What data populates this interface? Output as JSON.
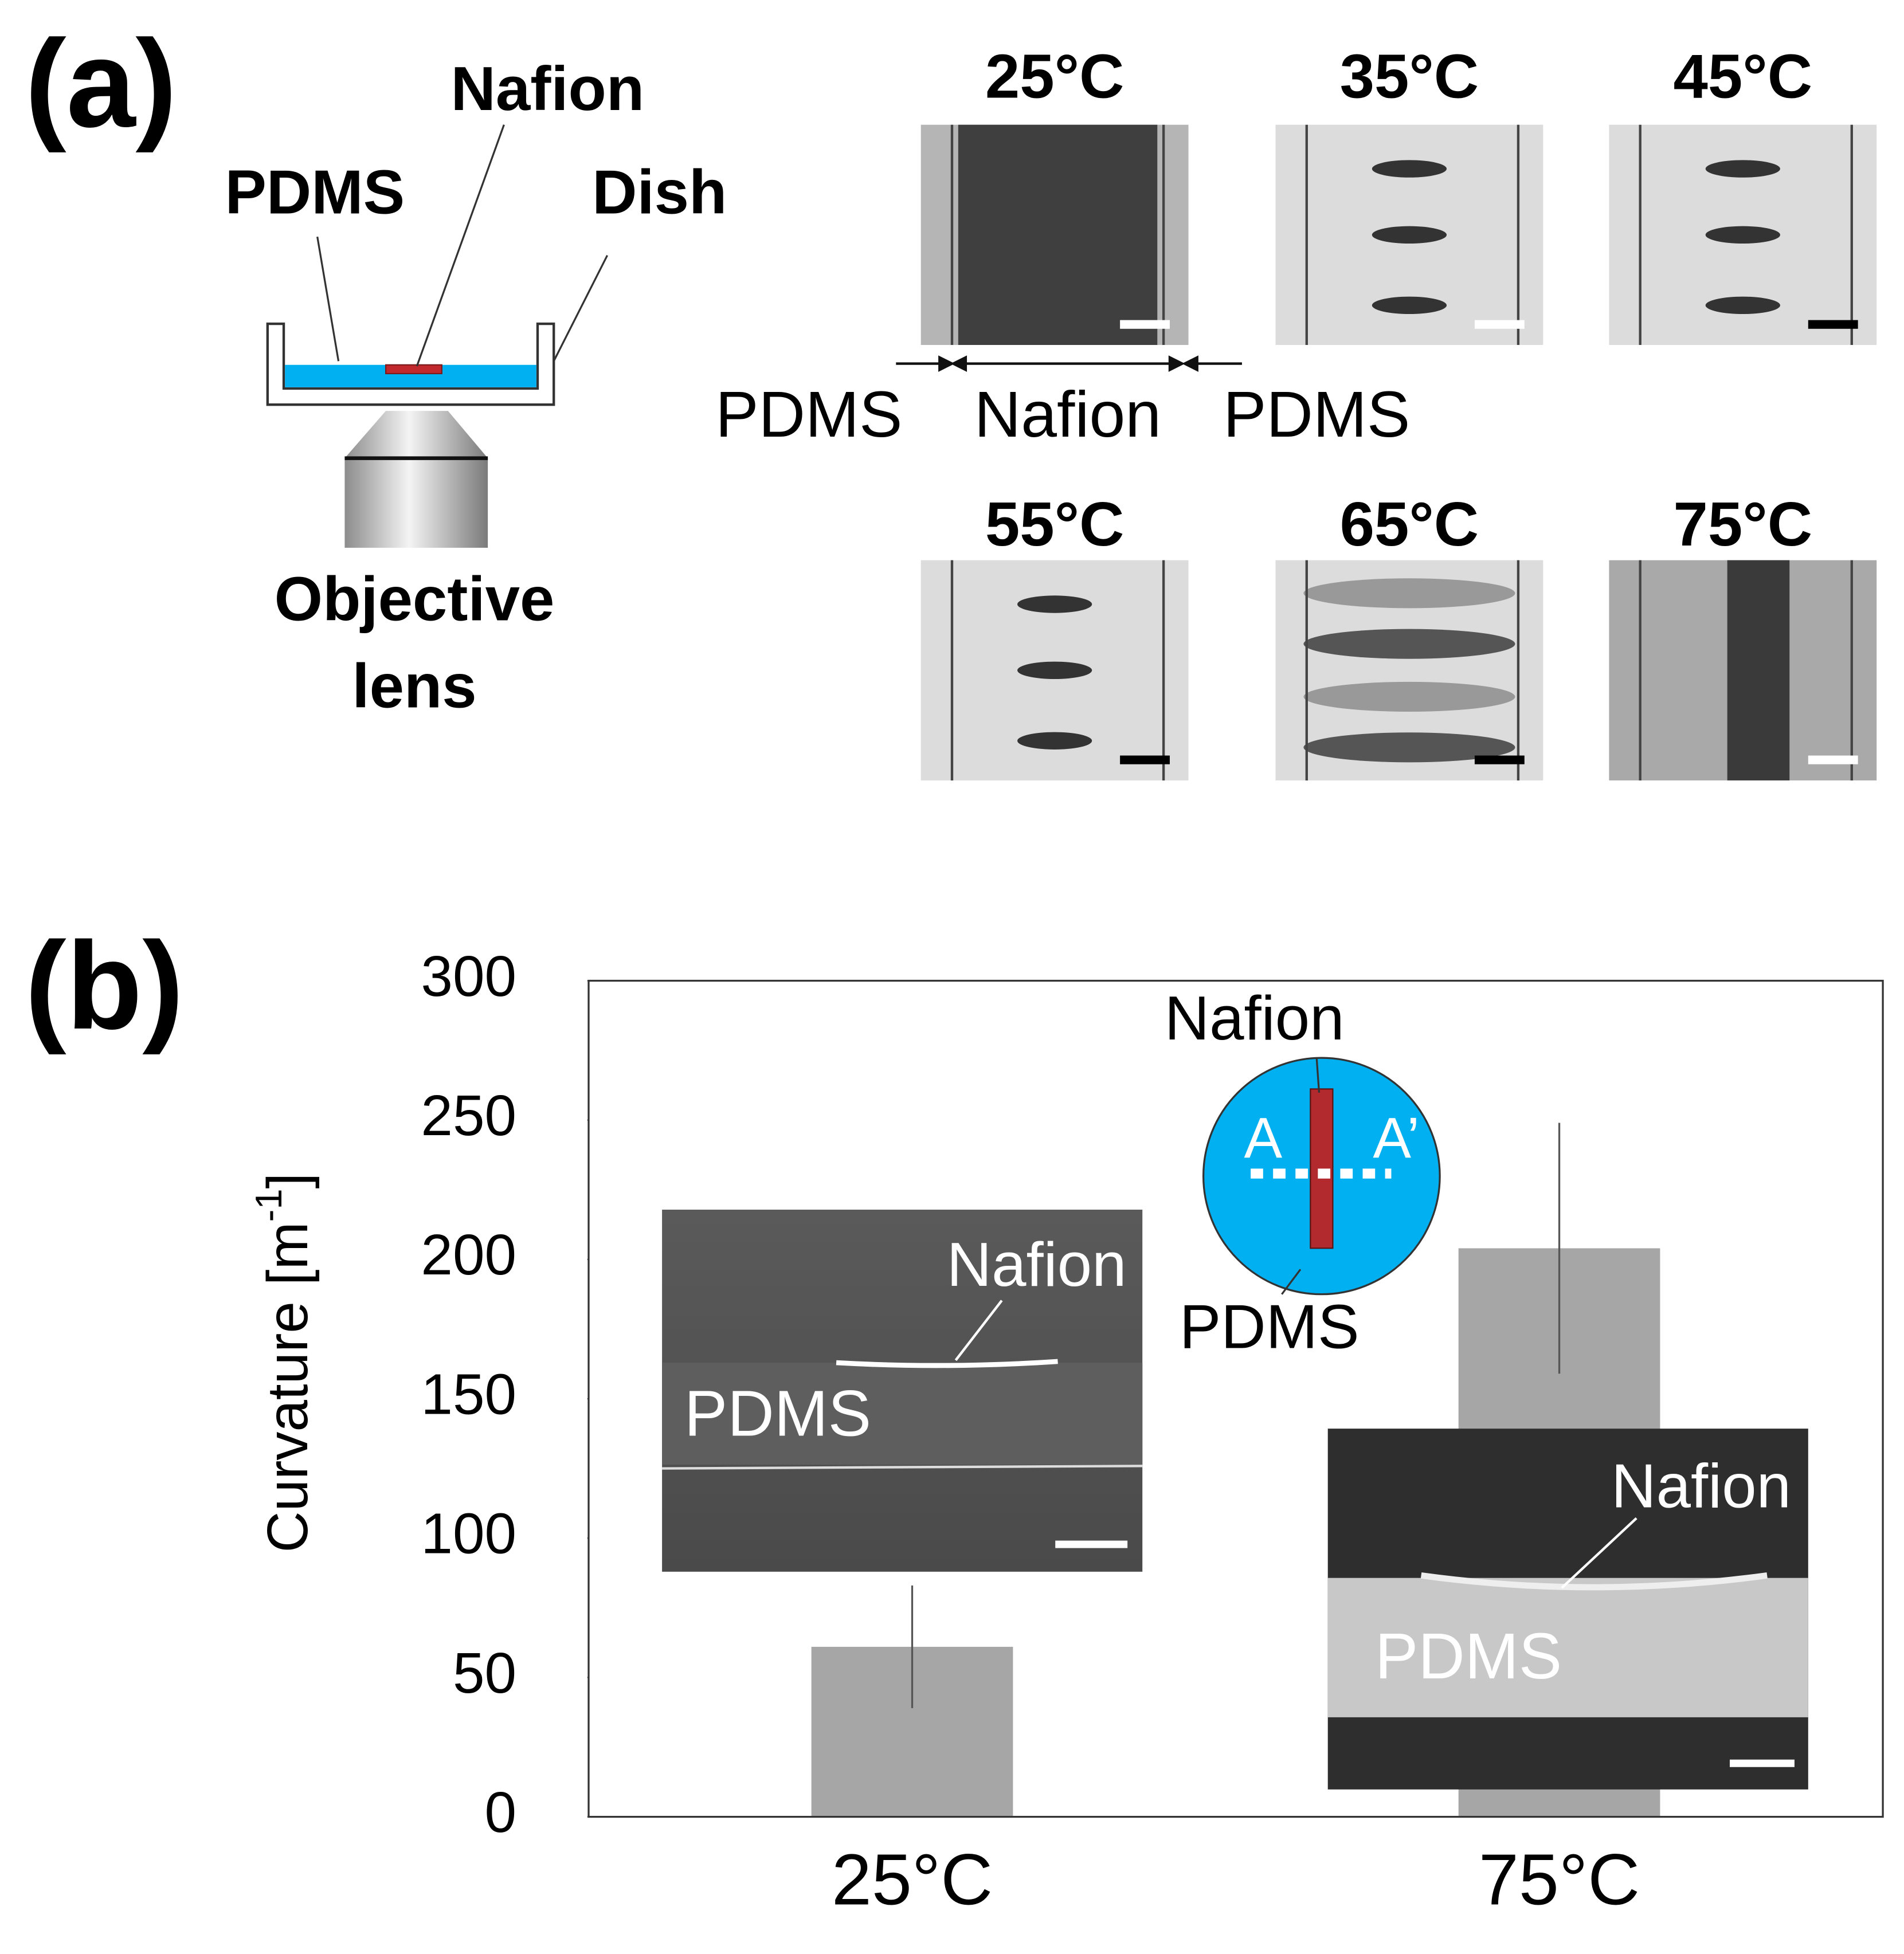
{
  "panel_a": {
    "label": "(a)",
    "schematic": {
      "nafion": "Nafion",
      "pdms": "PDMS",
      "dish": "Dish",
      "objective": [
        "Objective",
        "lens"
      ]
    },
    "micrographs": [
      "25°C",
      "35°C",
      "45°C",
      "55°C",
      "65°C",
      "75°C"
    ],
    "annotation": [
      "PDMS",
      "Nafion",
      "PDMS"
    ]
  },
  "panel_b": {
    "label": "(b)",
    "chart_data": {
      "type": "bar",
      "ylabel": [
        "Curvature [m",
        "-1",
        "]"
      ],
      "categories": [
        "25°C",
        "75°C"
      ],
      "values": [
        61,
        204
      ],
      "errors": [
        22,
        45
      ],
      "color": "#a6a6a6",
      "ylim": [
        0,
        300
      ],
      "yticks": [
        0,
        50,
        100,
        150,
        200,
        250,
        300
      ],
      "grid": false
    },
    "inset_circle": {
      "nafion": "Nafion",
      "a": "A",
      "a_prime": "A’",
      "pdms": "PDMS"
    },
    "inset_sem": [
      {
        "nafion": "Nafion",
        "pdms": "PDMS"
      },
      {
        "nafion": "Nafion",
        "pdms": "PDMS"
      }
    ]
  }
}
